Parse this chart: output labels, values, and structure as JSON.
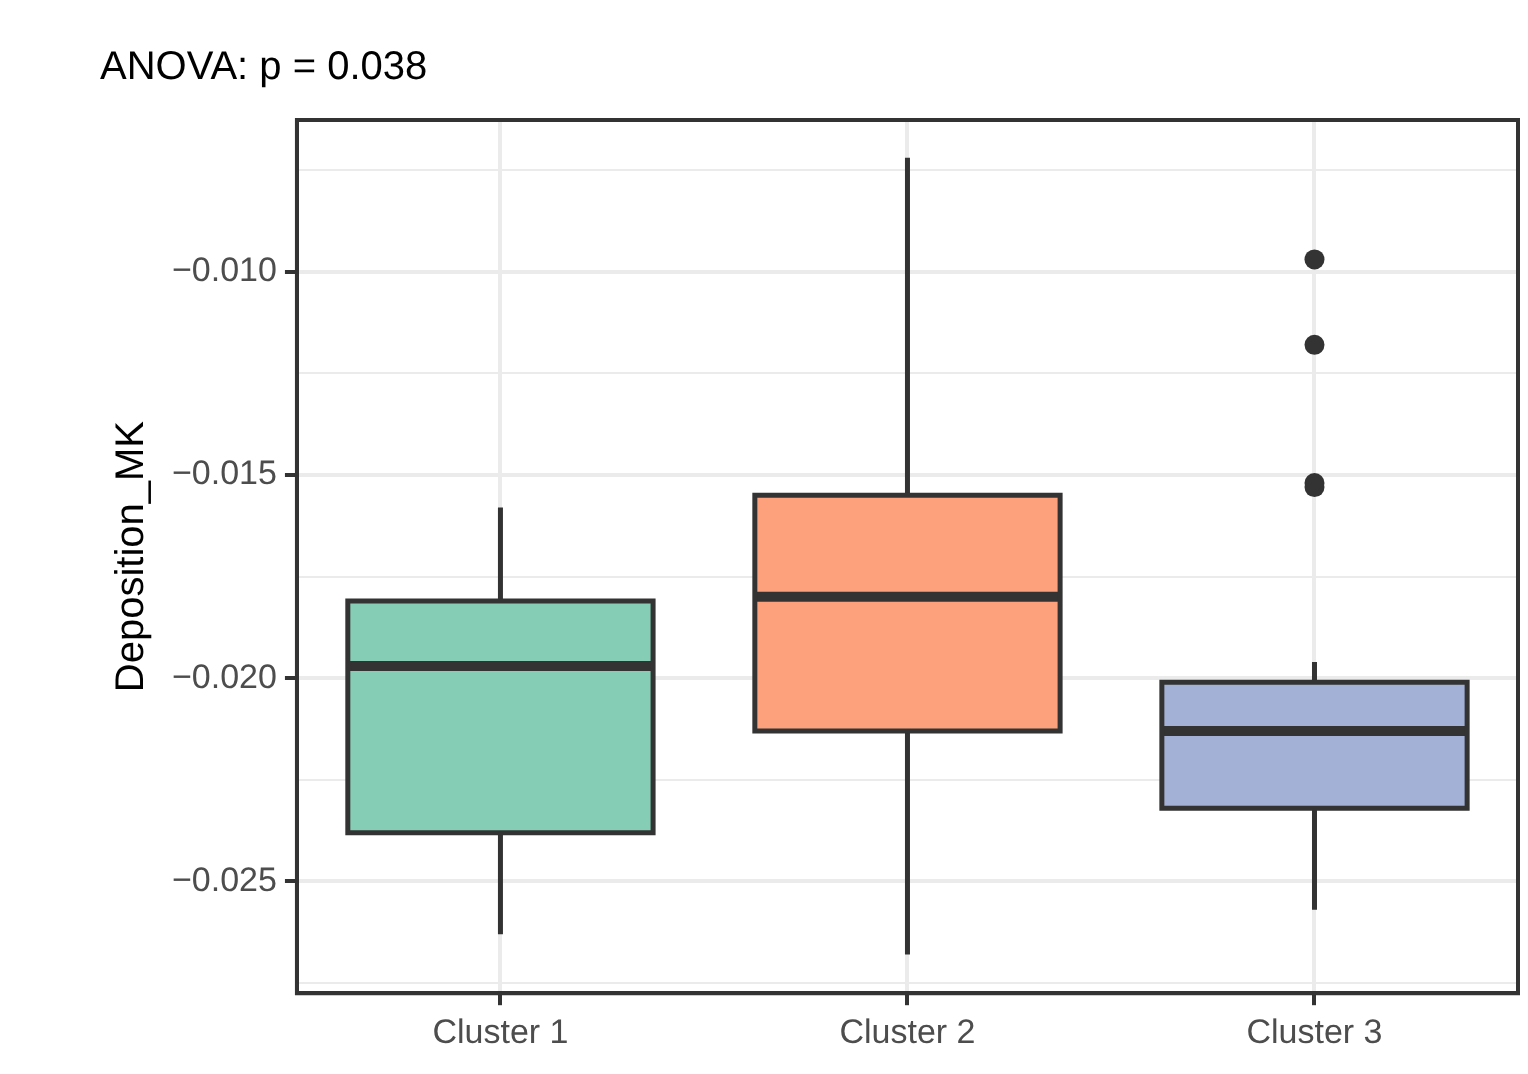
{
  "chart_data": {
    "type": "box",
    "title": "ANOVA: p = 0.038",
    "ylabel": "Deposition_MK",
    "categories": [
      "Cluster 1",
      "Cluster 2",
      "Cluster 3"
    ],
    "boxes": [
      {
        "low": -0.0263,
        "q1": -0.0238,
        "median": -0.0197,
        "q3": -0.0181,
        "high": -0.0158
      },
      {
        "low": -0.0268,
        "q1": -0.0213,
        "median": -0.018,
        "q3": -0.0155,
        "high": -0.0072
      },
      {
        "low": -0.0257,
        "q1": -0.0232,
        "median": -0.0213,
        "q3": -0.0201,
        "high": -0.0196,
        "outliers": [
          -0.0097,
          -0.0118,
          -0.0152,
          -0.0153
        ]
      }
    ],
    "colors": [
      "#85cdb4",
      "#fda07c",
      "#a3b1d6"
    ],
    "ylim": [
      -0.02775,
      -0.00627
    ],
    "yticks": [
      {
        "value": -0.0275,
        "label": null
      },
      {
        "value": -0.025,
        "label": "−0.025"
      },
      {
        "value": -0.0225,
        "label": null
      },
      {
        "value": -0.02,
        "label": "−0.020"
      },
      {
        "value": -0.0175,
        "label": null
      },
      {
        "value": -0.015,
        "label": "−0.015"
      },
      {
        "value": -0.0125,
        "label": null
      },
      {
        "value": -0.01,
        "label": "−0.010"
      },
      {
        "value": -0.0075,
        "label": null
      }
    ],
    "grid": true
  }
}
